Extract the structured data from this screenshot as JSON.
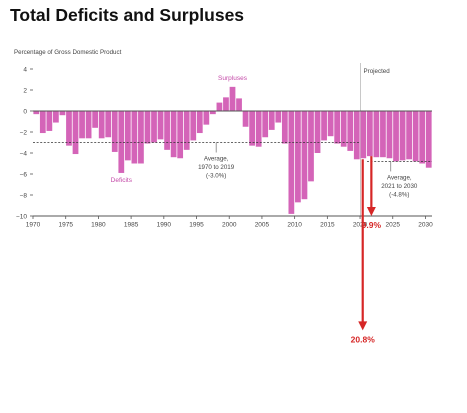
{
  "page": {
    "title": "Total Deficits and Surpluses"
  },
  "colors": {
    "bar": "#d464b8",
    "arrow": "#d62626",
    "axis": "#555555",
    "text": "#444444",
    "label_pink": "#c44aa8"
  },
  "chart_data": {
    "type": "bar",
    "ylabel": "Percentage of Gross Domestic Product",
    "ylim": [
      -10,
      4
    ],
    "yticks": [
      4,
      2,
      0,
      -2,
      -4,
      -6,
      -8,
      -10
    ],
    "xticks": [
      1970,
      1975,
      1980,
      1985,
      1990,
      1995,
      2000,
      2005,
      2010,
      2015,
      2020,
      2025,
      2030
    ],
    "years": [
      1970,
      1971,
      1972,
      1973,
      1974,
      1975,
      1976,
      1977,
      1978,
      1979,
      1980,
      1981,
      1982,
      1983,
      1984,
      1985,
      1986,
      1987,
      1988,
      1989,
      1990,
      1991,
      1992,
      1993,
      1994,
      1995,
      1996,
      1997,
      1998,
      1999,
      2000,
      2001,
      2002,
      2003,
      2004,
      2005,
      2006,
      2007,
      2008,
      2009,
      2010,
      2011,
      2012,
      2013,
      2014,
      2015,
      2016,
      2017,
      2018,
      2019,
      2020,
      2021,
      2022,
      2023,
      2024,
      2025,
      2026,
      2027,
      2028,
      2029,
      2030
    ],
    "values": [
      -0.3,
      -2.1,
      -1.9,
      -1.1,
      -0.4,
      -3.3,
      -4.1,
      -2.6,
      -2.6,
      -1.6,
      -2.6,
      -2.5,
      -3.9,
      -5.9,
      -4.7,
      -5.0,
      -5.0,
      -3.1,
      -3.0,
      -2.7,
      -3.7,
      -4.4,
      -4.5,
      -3.7,
      -2.8,
      -2.1,
      -1.3,
      -0.3,
      0.8,
      1.3,
      2.3,
      1.2,
      -1.5,
      -3.3,
      -3.4,
      -2.5,
      -1.8,
      -1.1,
      -3.1,
      -9.8,
      -8.7,
      -8.4,
      -6.7,
      -4.0,
      -2.8,
      -2.4,
      -3.1,
      -3.4,
      -3.8,
      -4.6,
      -4.5,
      -4.3,
      -4.4,
      -4.4,
      -4.5,
      -4.8,
      -4.7,
      -4.6,
      -4.8,
      -5.0,
      -5.4
    ],
    "projection_start": 2020,
    "projected_label": "Projected",
    "annotations": {
      "surpluses": "Surpluses",
      "deficits": "Deficits",
      "avg_hist": {
        "lines": [
          "Average,",
          "1970 to 2019",
          "(-3.0%)"
        ],
        "value": -3.0,
        "from": 1970,
        "to": 2019
      },
      "avg_proj": {
        "lines": [
          "Average,",
          "2021 to 2030",
          "(-4.8%)"
        ],
        "value": -4.8,
        "from": 2021,
        "to": 2030
      }
    },
    "arrows": [
      {
        "label": "9.9%",
        "x": 2021,
        "from": -4.3,
        "to": -9.9
      },
      {
        "label": "20.8%",
        "x": 2020,
        "from": -4.6,
        "to": -20.8
      }
    ]
  }
}
